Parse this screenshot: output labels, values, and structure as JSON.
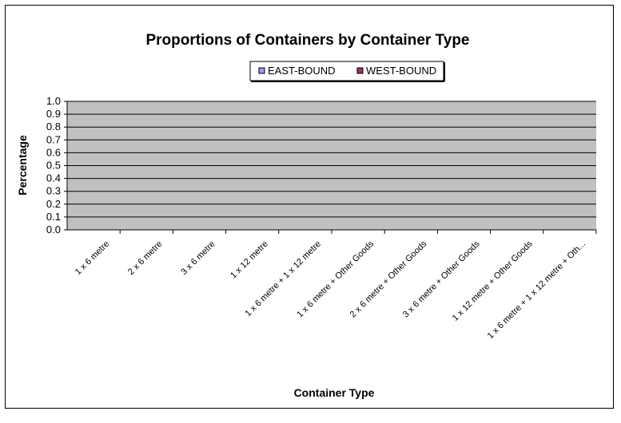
{
  "chart_data": {
    "type": "bar",
    "title": "Proportions of Containers by Container Type",
    "xlabel": "Container Type",
    "ylabel": "Percentage",
    "ylim": [
      0,
      1
    ],
    "yticks": [
      "0.0",
      "0.1",
      "0.2",
      "0.3",
      "0.4",
      "0.5",
      "0.6",
      "0.7",
      "0.8",
      "0.9",
      "1.0"
    ],
    "categories": [
      "1 x 6 metre",
      "2 x 6 metre",
      "3 x 6 metre",
      "1 x 12 metre",
      "1 x 6 metre + 1 x 12 metre",
      "1 x 6 metre + Other Goods",
      "2 x 6 metre + Other Goods",
      "3 x 6 metre + Other Goods",
      "1 x 12 metre + Other Goods",
      "1 x 6 metre + 1 x 12 metre + Oth..."
    ],
    "series": [
      {
        "name": "EAST-BOUND",
        "color": "#9999ff",
        "values": [
          0,
          0,
          0,
          0,
          0,
          0,
          0,
          0,
          0,
          0
        ]
      },
      {
        "name": "WEST-BOUND",
        "color": "#993366",
        "values": [
          0,
          0,
          0,
          0,
          0,
          0,
          0,
          0,
          0,
          0
        ]
      }
    ],
    "plot_background": "#c0c0c0",
    "grid": true,
    "legend_position": "top"
  }
}
